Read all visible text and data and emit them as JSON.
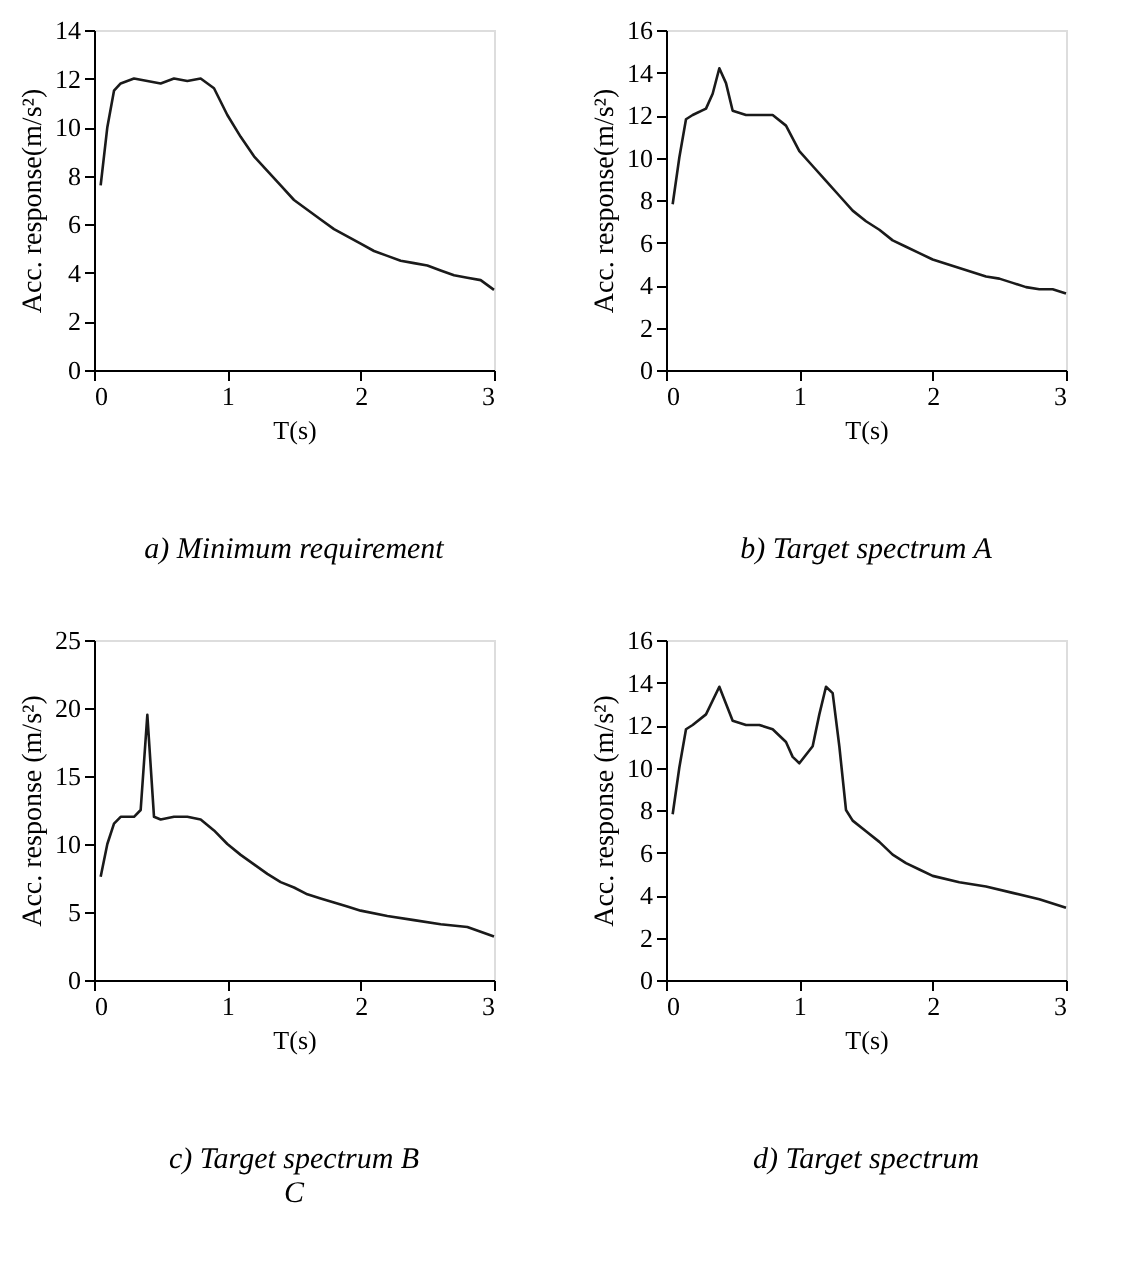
{
  "chart_data": [
    {
      "type": "line",
      "title": "a)    Minimum requirement",
      "xlabel": "T(s)",
      "ylabel": "Acc. response(m/s²)",
      "xlim": [
        0,
        3
      ],
      "xticks": [
        0,
        1,
        2,
        3
      ],
      "ylim": [
        0,
        14
      ],
      "yticks": [
        0,
        2,
        4,
        6,
        8,
        10,
        12,
        14
      ],
      "grid": false,
      "legend": false,
      "x": [
        0.05,
        0.1,
        0.15,
        0.2,
        0.3,
        0.4,
        0.5,
        0.6,
        0.7,
        0.8,
        0.9,
        1.0,
        1.1,
        1.2,
        1.3,
        1.4,
        1.5,
        1.6,
        1.7,
        1.8,
        1.9,
        2.0,
        2.1,
        2.2,
        2.3,
        2.4,
        2.5,
        2.6,
        2.7,
        2.8,
        2.9,
        3.0
      ],
      "series": [
        {
          "color": "#1a1a1a",
          "values": [
            7.6,
            10,
            11.5,
            11.8,
            12,
            11.9,
            11.8,
            12,
            11.9,
            12,
            11.6,
            10.5,
            9.6,
            8.8,
            8.2,
            7.6,
            7.0,
            6.6,
            6.2,
            5.8,
            5.5,
            5.2,
            4.9,
            4.7,
            4.5,
            4.4,
            4.3,
            4.1,
            3.9,
            3.8,
            3.7,
            3.3
          ]
        }
      ]
    },
    {
      "type": "line",
      "title": "b) Target spectrum A",
      "xlabel": "T(s)",
      "ylabel": "Acc. response(m/s²)",
      "xlim": [
        0,
        3
      ],
      "xticks": [
        0,
        1,
        2,
        3
      ],
      "ylim": [
        0,
        16
      ],
      "yticks": [
        0,
        2,
        4,
        6,
        8,
        10,
        12,
        14,
        16
      ],
      "grid": false,
      "legend": false,
      "x": [
        0.05,
        0.1,
        0.15,
        0.2,
        0.3,
        0.35,
        0.4,
        0.45,
        0.5,
        0.6,
        0.7,
        0.8,
        0.9,
        1.0,
        1.1,
        1.2,
        1.3,
        1.4,
        1.5,
        1.6,
        1.7,
        1.8,
        1.9,
        2.0,
        2.1,
        2.2,
        2.3,
        2.4,
        2.5,
        2.6,
        2.7,
        2.8,
        2.9,
        3.0
      ],
      "series": [
        {
          "color": "#1a1a1a",
          "values": [
            7.8,
            10,
            11.8,
            12,
            12.3,
            13,
            14.2,
            13.5,
            12.2,
            12,
            12,
            12,
            11.5,
            10.3,
            9.6,
            8.9,
            8.2,
            7.5,
            7.0,
            6.6,
            6.1,
            5.8,
            5.5,
            5.2,
            5.0,
            4.8,
            4.6,
            4.4,
            4.3,
            4.1,
            3.9,
            3.8,
            3.8,
            3.6
          ]
        }
      ]
    },
    {
      "type": "line",
      "title": "c) Target spectrum B",
      "annotations": [
        "C"
      ],
      "xlabel": "T(s)",
      "ylabel": "Acc. response (m/s²)",
      "xlim": [
        0,
        3
      ],
      "xticks": [
        0,
        1,
        2,
        3
      ],
      "ylim": [
        0,
        25
      ],
      "yticks": [
        0,
        5,
        10,
        15,
        20,
        25
      ],
      "grid": false,
      "legend": false,
      "x": [
        0.05,
        0.1,
        0.15,
        0.2,
        0.3,
        0.35,
        0.4,
        0.45,
        0.5,
        0.6,
        0.7,
        0.8,
        0.9,
        1.0,
        1.1,
        1.2,
        1.3,
        1.4,
        1.5,
        1.6,
        1.7,
        1.8,
        1.9,
        2.0,
        2.2,
        2.4,
        2.6,
        2.8,
        3.0
      ],
      "series": [
        {
          "color": "#1a1a1a",
          "values": [
            7.6,
            10,
            11.5,
            12,
            12,
            12.5,
            19.5,
            12,
            11.8,
            12,
            12,
            11.8,
            11,
            10,
            9.2,
            8.5,
            7.8,
            7.2,
            6.8,
            6.3,
            6.0,
            5.7,
            5.4,
            5.1,
            4.7,
            4.4,
            4.1,
            3.9,
            3.2
          ]
        }
      ]
    },
    {
      "type": "line",
      "title": "d) Target spectrum",
      "xlabel": "T(s)",
      "ylabel": "Acc. response (m/s²)",
      "xlim": [
        0,
        3
      ],
      "xticks": [
        0,
        1,
        2,
        3
      ],
      "ylim": [
        0,
        16
      ],
      "yticks": [
        0,
        2,
        4,
        6,
        8,
        10,
        12,
        14,
        16
      ],
      "grid": false,
      "legend": false,
      "x": [
        0.05,
        0.1,
        0.15,
        0.2,
        0.3,
        0.4,
        0.45,
        0.5,
        0.6,
        0.7,
        0.8,
        0.9,
        0.95,
        1.0,
        1.1,
        1.15,
        1.2,
        1.25,
        1.3,
        1.35,
        1.4,
        1.5,
        1.6,
        1.7,
        1.8,
        1.9,
        2.0,
        2.2,
        2.4,
        2.6,
        2.8,
        3.0
      ],
      "series": [
        {
          "color": "#1a1a1a",
          "values": [
            7.8,
            10,
            11.8,
            12,
            12.5,
            13.8,
            13,
            12.2,
            12,
            12,
            11.8,
            11.2,
            10.5,
            10.2,
            11,
            12.5,
            13.8,
            13.5,
            11,
            8,
            7.5,
            7,
            6.5,
            5.9,
            5.5,
            5.2,
            4.9,
            4.6,
            4.4,
            4.1,
            3.8,
            3.4
          ]
        }
      ]
    }
  ]
}
